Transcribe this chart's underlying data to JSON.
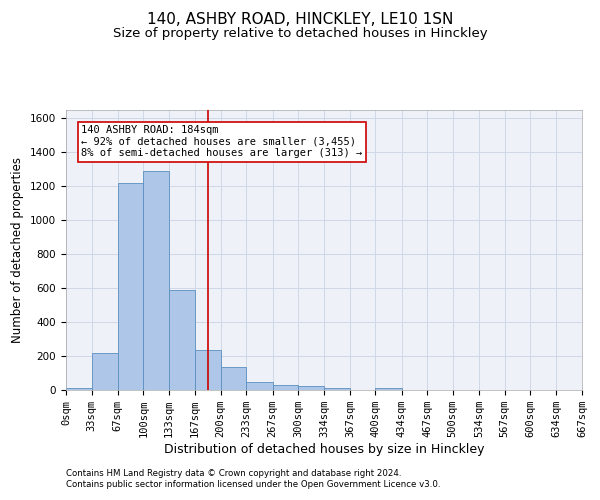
{
  "title1": "140, ASHBY ROAD, HINCKLEY, LE10 1SN",
  "title2": "Size of property relative to detached houses in Hinckley",
  "xlabel": "Distribution of detached houses by size in Hinckley",
  "ylabel": "Number of detached properties",
  "footnote1": "Contains HM Land Registry data © Crown copyright and database right 2024.",
  "footnote2": "Contains public sector information licensed under the Open Government Licence v3.0.",
  "bin_labels": [
    "0sqm",
    "33sqm",
    "67sqm",
    "100sqm",
    "133sqm",
    "167sqm",
    "200sqm",
    "233sqm",
    "267sqm",
    "300sqm",
    "334sqm",
    "367sqm",
    "400sqm",
    "434sqm",
    "467sqm",
    "500sqm",
    "534sqm",
    "567sqm",
    "600sqm",
    "634sqm",
    "667sqm"
  ],
  "bin_edges": [
    0,
    33,
    67,
    100,
    133,
    167,
    200,
    233,
    267,
    300,
    334,
    367,
    400,
    434,
    467,
    500,
    534,
    567,
    600,
    634,
    667
  ],
  "bar_heights": [
    10,
    220,
    1220,
    1290,
    590,
    235,
    135,
    45,
    30,
    25,
    10,
    0,
    12,
    0,
    0,
    0,
    0,
    0,
    0,
    0
  ],
  "bar_color": "#aec6e8",
  "bar_edge_color": "#5a8fc0",
  "grid_color": "#d0d8e8",
  "background_color": "#eef2f8",
  "vline_x": 184,
  "vline_color": "#cc0000",
  "annotation_text": "140 ASHBY ROAD: 184sqm\n← 92% of detached houses are smaller (3,455)\n8% of semi-detached houses are larger (313) →",
  "annotation_box_color": "#cc0000",
  "ylim": [
    0,
    1650
  ],
  "yticks": [
    0,
    200,
    400,
    600,
    800,
    1000,
    1200,
    1400,
    1600
  ],
  "title1_fontsize": 11,
  "title2_fontsize": 9.5,
  "xlabel_fontsize": 9,
  "ylabel_fontsize": 8.5,
  "annotation_fontsize": 7.5,
  "tick_fontsize": 7.5
}
